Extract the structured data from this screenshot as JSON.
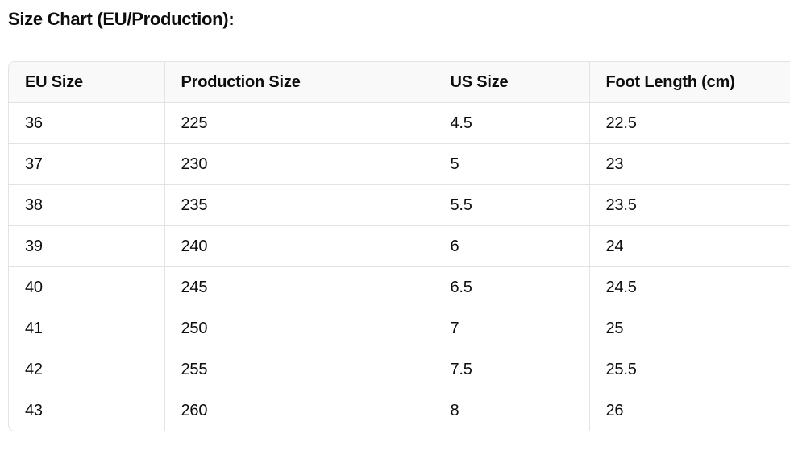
{
  "title": "Size Chart (EU/Production):",
  "table": {
    "headers": [
      "EU Size",
      "Production Size",
      "US Size",
      "Foot Length (cm)"
    ],
    "rows": [
      [
        "36",
        "225",
        "4.5",
        "22.5"
      ],
      [
        "37",
        "230",
        "5",
        "23"
      ],
      [
        "38",
        "235",
        "5.5",
        "23.5"
      ],
      [
        "39",
        "240",
        "6",
        "24"
      ],
      [
        "40",
        "245",
        "6.5",
        "24.5"
      ],
      [
        "41",
        "250",
        "7",
        "25"
      ],
      [
        "42",
        "255",
        "7.5",
        "25.5"
      ],
      [
        "43",
        "260",
        "8",
        "26"
      ]
    ]
  }
}
